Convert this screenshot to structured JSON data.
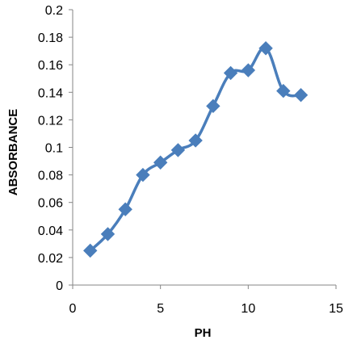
{
  "chart_data": {
    "type": "line",
    "title": "",
    "xlabel": "PH",
    "ylabel": "ABSORBANCE",
    "xlim": [
      0,
      15
    ],
    "ylim": [
      0,
      0.2
    ],
    "x_ticks": [
      "0",
      "5",
      "10",
      "15"
    ],
    "y_ticks": [
      "0",
      "0.02",
      "0.04",
      "0.06",
      "0.08",
      "0.1",
      "0.12",
      "0.14",
      "0.16",
      "0.18",
      "0.2"
    ],
    "grid": false,
    "smooth": true,
    "marker": "diamond",
    "color": "#4a7ebb",
    "series": [
      {
        "x": [
          1,
          2,
          3,
          4,
          5,
          6,
          7,
          8,
          9,
          10,
          11,
          12,
          13
        ],
        "y": [
          0.025,
          0.037,
          0.055,
          0.08,
          0.089,
          0.098,
          0.105,
          0.13,
          0.154,
          0.156,
          0.172,
          0.141,
          0.138
        ]
      }
    ]
  }
}
